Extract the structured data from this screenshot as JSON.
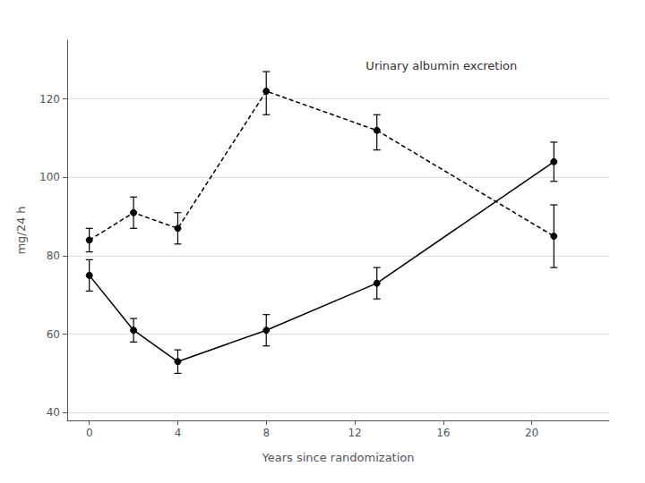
{
  "chart_data": {
    "type": "line",
    "xlabel": "Years since randomization",
    "ylabel": "mg/24 h",
    "annotations": [
      {
        "text": "Urinary albumin excretion",
        "x": 12.5,
        "y": 130
      }
    ],
    "x": [
      0,
      2,
      4,
      8,
      13,
      21
    ],
    "series": [
      {
        "color": "#000000",
        "line_style": "solid",
        "marker": "circle",
        "values": [
          75,
          61,
          53,
          61,
          73,
          104
        ],
        "yerr_low": [
          4,
          3,
          3,
          4,
          4,
          5
        ],
        "yerr_high": [
          4,
          3,
          3,
          4,
          4,
          5
        ]
      },
      {
        "color": "#000000",
        "line_style": "dashed",
        "marker": "circle",
        "values": [
          84,
          91,
          87,
          122,
          112,
          85
        ],
        "yerr_low": [
          3,
          4,
          4,
          6,
          5,
          8
        ],
        "yerr_high": [
          3,
          4,
          4,
          5,
          4,
          8
        ]
      }
    ],
    "xlim": [
      -1,
      23.5
    ],
    "ylim": [
      38,
      135
    ],
    "xticks": [
      0,
      4,
      8,
      12,
      16,
      20
    ],
    "yticks": [
      40,
      60,
      80,
      100,
      120
    ],
    "grid": "y"
  }
}
